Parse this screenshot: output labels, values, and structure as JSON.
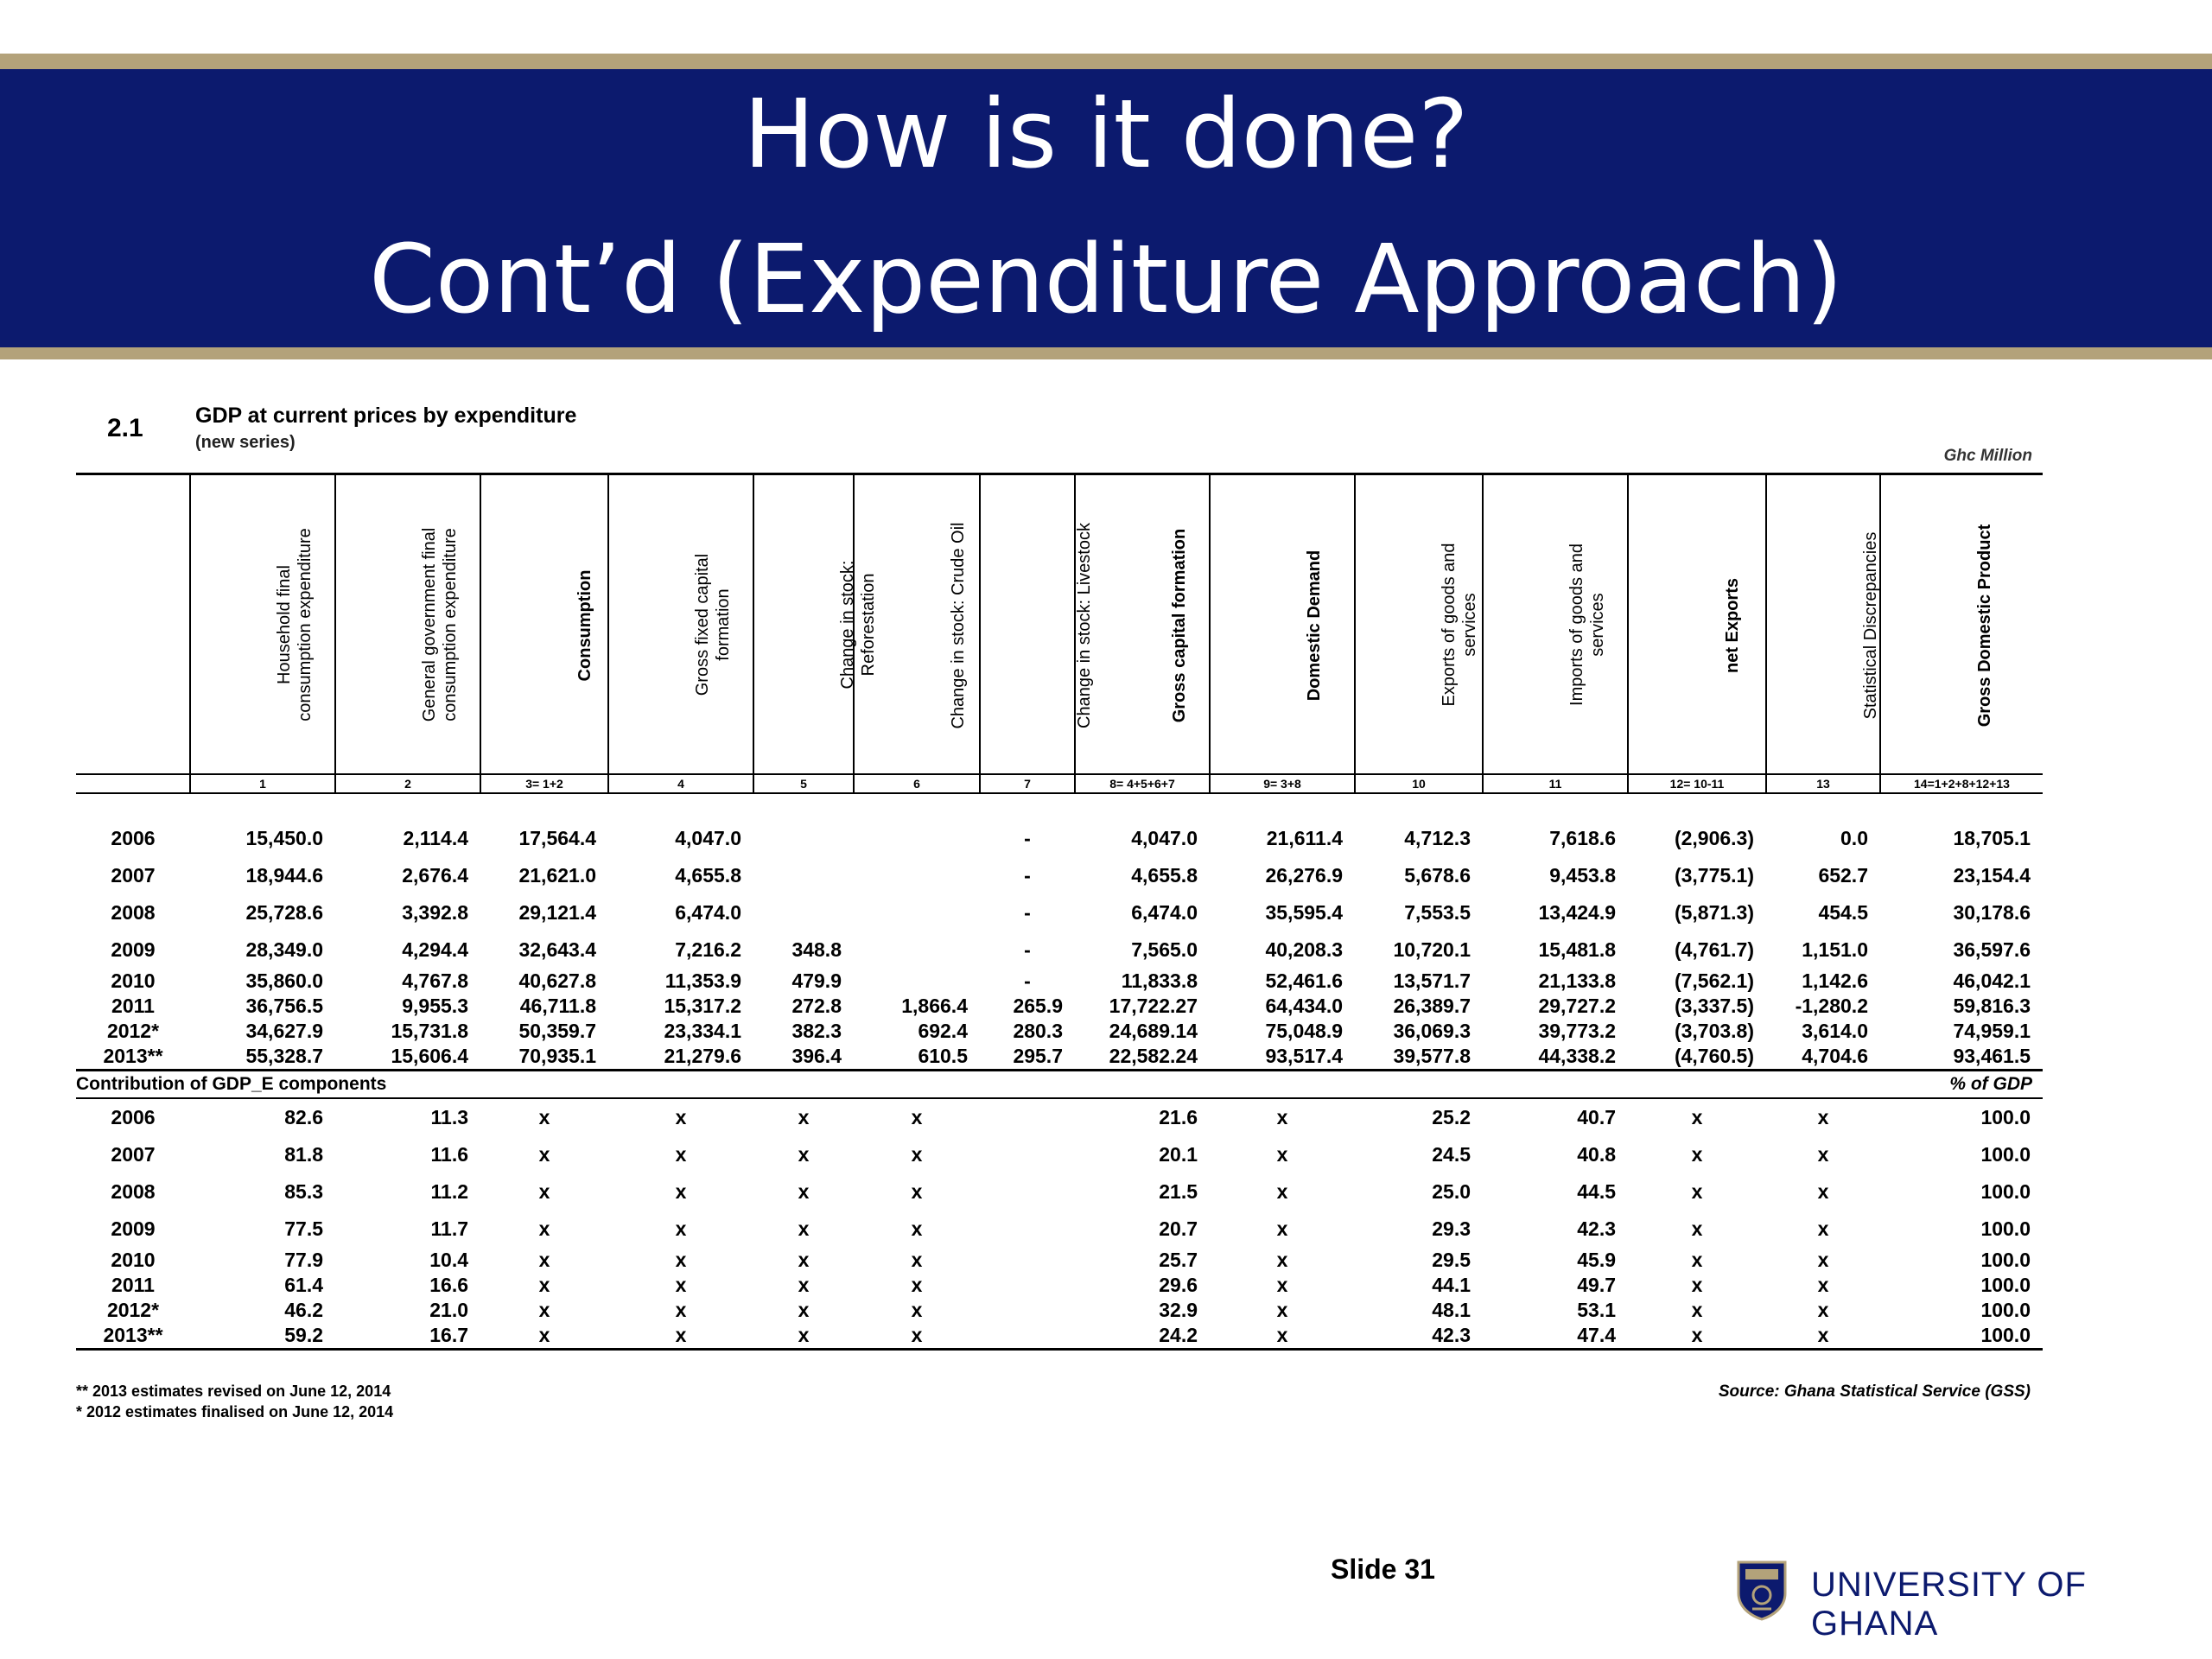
{
  "slide": {
    "title_line1": "How is it done?",
    "title_line2": "Cont’d (Expenditure Approach)",
    "number": "Slide 31",
    "institution": "UNIVERSITY OF GHANA",
    "colors": {
      "banner": "#0c1a6e",
      "accent": "#b3a27a"
    }
  },
  "table": {
    "number": "2.1",
    "title": "GDP at current prices by expenditure",
    "subtitle": "(new series)",
    "unit": "Ghc Million",
    "columns": [
      "Household final consumption expenditure",
      "General government final consumption expenditure",
      "Consumption",
      "Gross fixed capital formation",
      "Change in stock: Reforestation",
      "Change in stock: Crude Oil",
      "Change in stock: Livestock",
      "Gross capital formation",
      "Domestic Demand",
      "Exports of goods and services",
      "Imports of goods and services",
      "net Exports",
      "Statistical Discrepancies",
      "Gross Domestic Product"
    ],
    "codes": [
      "1",
      "2",
      "3= 1+2",
      "4",
      "5",
      "6",
      "7",
      "8= 4+5+6+7",
      "9= 3+8",
      "10",
      "11",
      "12= 10-11",
      "13",
      "14=1+2+8+12+13"
    ],
    "rows": [
      {
        "year": "2006",
        "v": [
          "15,450.0",
          "2,114.4",
          "17,564.4",
          "4,047.0",
          "",
          "",
          "-",
          "4,047.0",
          "21,611.4",
          "4,712.3",
          "7,618.6",
          "(2,906.3)",
          "0.0",
          "18,705.1"
        ]
      },
      {
        "year": "2007",
        "v": [
          "18,944.6",
          "2,676.4",
          "21,621.0",
          "4,655.8",
          "",
          "",
          "-",
          "4,655.8",
          "26,276.9",
          "5,678.6",
          "9,453.8",
          "(3,775.1)",
          "652.7",
          "23,154.4"
        ]
      },
      {
        "year": "2008",
        "v": [
          "25,728.6",
          "3,392.8",
          "29,121.4",
          "6,474.0",
          "",
          "",
          "-",
          "6,474.0",
          "35,595.4",
          "7,553.5",
          "13,424.9",
          "(5,871.3)",
          "454.5",
          "30,178.6"
        ]
      },
      {
        "year": "2009",
        "v": [
          "28,349.0",
          "4,294.4",
          "32,643.4",
          "7,216.2",
          "348.8",
          "",
          "-",
          "7,565.0",
          "40,208.3",
          "10,720.1",
          "15,481.8",
          "(4,761.7)",
          "1,151.0",
          "36,597.6"
        ]
      },
      {
        "year": "2010",
        "v": [
          "35,860.0",
          "4,767.8",
          "40,627.8",
          "11,353.9",
          "479.9",
          "",
          "-",
          "11,833.8",
          "52,461.6",
          "13,571.7",
          "21,133.8",
          "(7,562.1)",
          "1,142.6",
          "46,042.1"
        ]
      },
      {
        "year": "2011",
        "v": [
          "36,756.5",
          "9,955.3",
          "46,711.8",
          "15,317.2",
          "272.8",
          "1,866.4",
          "265.9",
          "17,722.27",
          "64,434.0",
          "26,389.7",
          "29,727.2",
          "(3,337.5)",
          "-1,280.2",
          "59,816.3"
        ]
      },
      {
        "year": "2012*",
        "v": [
          "34,627.9",
          "15,731.8",
          "50,359.7",
          "23,334.1",
          "382.3",
          "692.4",
          "280.3",
          "24,689.14",
          "75,048.9",
          "36,069.3",
          "39,773.2",
          "(3,703.8)",
          "3,614.0",
          "74,959.1"
        ]
      },
      {
        "year": "2013**",
        "v": [
          "55,328.7",
          "15,606.4",
          "70,935.1",
          "21,279.6",
          "396.4",
          "610.5",
          "295.7",
          "22,582.24",
          "93,517.4",
          "39,577.8",
          "44,338.2",
          "(4,760.5)",
          "4,704.6",
          "93,461.5"
        ]
      }
    ],
    "contrib_title": "Contribution of GDP_E components",
    "contrib_unit": "% of GDP",
    "contrib_rows": [
      {
        "year": "2006",
        "v": [
          "82.6",
          "11.3",
          "x",
          "x",
          "x",
          "x",
          "",
          "21.6",
          "x",
          "25.2",
          "40.7",
          "x",
          "x",
          "100.0"
        ]
      },
      {
        "year": "2007",
        "v": [
          "81.8",
          "11.6",
          "x",
          "x",
          "x",
          "x",
          "",
          "20.1",
          "x",
          "24.5",
          "40.8",
          "x",
          "x",
          "100.0"
        ]
      },
      {
        "year": "2008",
        "v": [
          "85.3",
          "11.2",
          "x",
          "x",
          "x",
          "x",
          "",
          "21.5",
          "x",
          "25.0",
          "44.5",
          "x",
          "x",
          "100.0"
        ]
      },
      {
        "year": "2009",
        "v": [
          "77.5",
          "11.7",
          "x",
          "x",
          "x",
          "x",
          "",
          "20.7",
          "x",
          "29.3",
          "42.3",
          "x",
          "x",
          "100.0"
        ]
      },
      {
        "year": "2010",
        "v": [
          "77.9",
          "10.4",
          "x",
          "x",
          "x",
          "x",
          "",
          "25.7",
          "x",
          "29.5",
          "45.9",
          "x",
          "x",
          "100.0"
        ]
      },
      {
        "year": "2011",
        "v": [
          "61.4",
          "16.6",
          "x",
          "x",
          "x",
          "x",
          "",
          "29.6",
          "x",
          "44.1",
          "49.7",
          "x",
          "x",
          "100.0"
        ]
      },
      {
        "year": "2012*",
        "v": [
          "46.2",
          "21.0",
          "x",
          "x",
          "x",
          "x",
          "",
          "32.9",
          "x",
          "48.1",
          "53.1",
          "x",
          "x",
          "100.0"
        ]
      },
      {
        "year": "2013**",
        "v": [
          "59.2",
          "16.7",
          "x",
          "x",
          "x",
          "x",
          "",
          "24.2",
          "x",
          "42.3",
          "47.4",
          "x",
          "x",
          "100.0"
        ]
      }
    ],
    "note1": "** 2013 estimates revised on June 12, 2014",
    "note2": "* 2012 estimates finalised on June 12, 2014",
    "source": "Source: Ghana Statistical Service (GSS)"
  }
}
